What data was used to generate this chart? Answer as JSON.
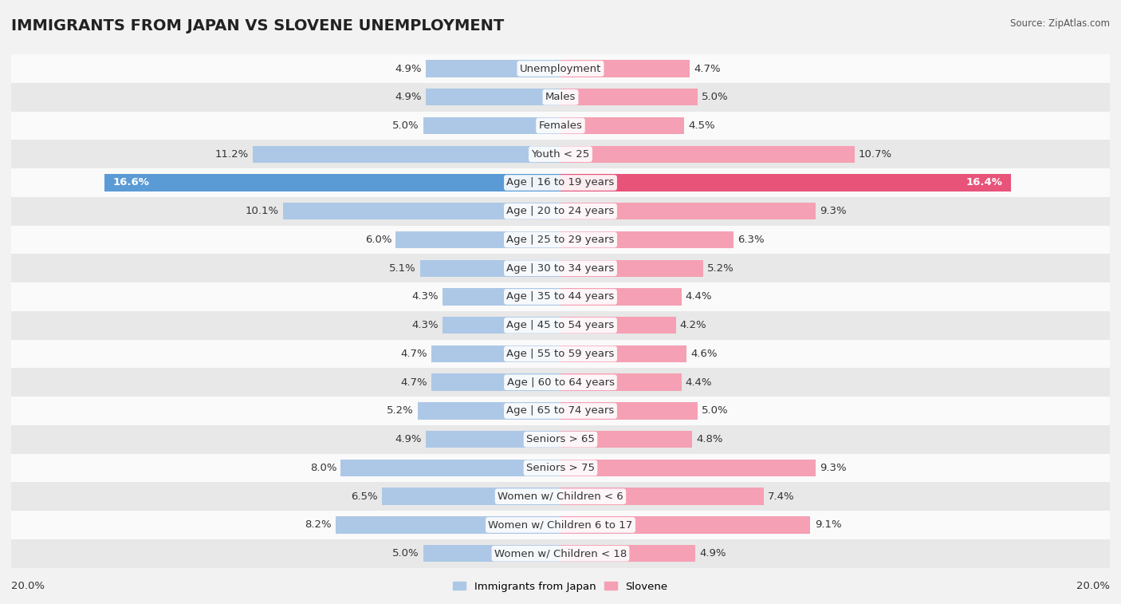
{
  "title": "IMMIGRANTS FROM JAPAN VS SLOVENE UNEMPLOYMENT",
  "source": "Source: ZipAtlas.com",
  "categories": [
    "Unemployment",
    "Males",
    "Females",
    "Youth < 25",
    "Age | 16 to 19 years",
    "Age | 20 to 24 years",
    "Age | 25 to 29 years",
    "Age | 30 to 34 years",
    "Age | 35 to 44 years",
    "Age | 45 to 54 years",
    "Age | 55 to 59 years",
    "Age | 60 to 64 years",
    "Age | 65 to 74 years",
    "Seniors > 65",
    "Seniors > 75",
    "Women w/ Children < 6",
    "Women w/ Children 6 to 17",
    "Women w/ Children < 18"
  ],
  "japan_values": [
    4.9,
    4.9,
    5.0,
    11.2,
    16.6,
    10.1,
    6.0,
    5.1,
    4.3,
    4.3,
    4.7,
    4.7,
    5.2,
    4.9,
    8.0,
    6.5,
    8.2,
    5.0
  ],
  "slovene_values": [
    4.7,
    5.0,
    4.5,
    10.7,
    16.4,
    9.3,
    6.3,
    5.2,
    4.4,
    4.2,
    4.6,
    4.4,
    5.0,
    4.8,
    9.3,
    7.4,
    9.1,
    4.9
  ],
  "japan_color": "#adc8e6",
  "slovene_color": "#f5a0b4",
  "highlight_japan_color": "#5b9bd5",
  "highlight_slovene_color": "#e8537a",
  "background_color": "#f2f2f2",
  "row_bg_color": "#fafafa",
  "row_alt_color": "#e8e8e8",
  "axis_max": 20.0,
  "label_fontsize": 9.5,
  "title_fontsize": 14,
  "bar_height": 0.6,
  "legend_japan": "Immigrants from Japan",
  "legend_slovene": "Slovene"
}
